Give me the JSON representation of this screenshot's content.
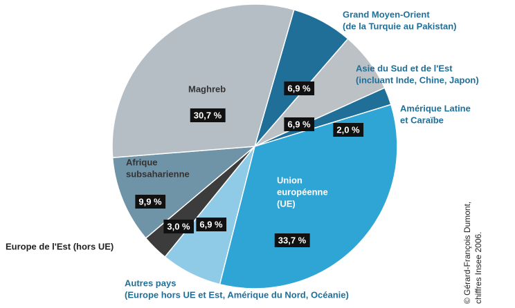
{
  "chart_data": {
    "type": "pie",
    "labels": [
      [
        "Grand Moyen-Orient",
        "(de la Turquie au Pakistan)"
      ],
      [
        "Asie du Sud et de l'Est",
        "(incluant Inde, Chine, Japon)"
      ],
      [
        "Amérique Latine",
        "et Caraïbe"
      ],
      [
        "Union",
        "européenne",
        "(UE)"
      ],
      [
        "Autres pays",
        "(Europe hors UE et Est, Amérique du Nord, Océanie)"
      ],
      [
        "Europe de l'Est (hors UE)"
      ],
      [
        "Afrique",
        "subsaharienne"
      ],
      [
        "Maghreb"
      ]
    ],
    "values": [
      6.9,
      6.9,
      2.0,
      33.7,
      6.9,
      3.0,
      9.9,
      30.7
    ],
    "value_labels": [
      "6,9 %",
      "6,9 %",
      "2,0 %",
      "33,7 %",
      "6,9 %",
      "3,0 %",
      "9,9 %",
      "30,7 %"
    ],
    "colors": [
      "#1f6f99",
      "#bcc1c6",
      "#1f6f99",
      "#2fa5d5",
      "#8fcbe7",
      "#3c3c3c",
      "#6f93a7",
      "#b5bdc5"
    ],
    "credit": [
      "© Gérard-François Dumont,",
      "chiffres Insee 2006."
    ]
  }
}
